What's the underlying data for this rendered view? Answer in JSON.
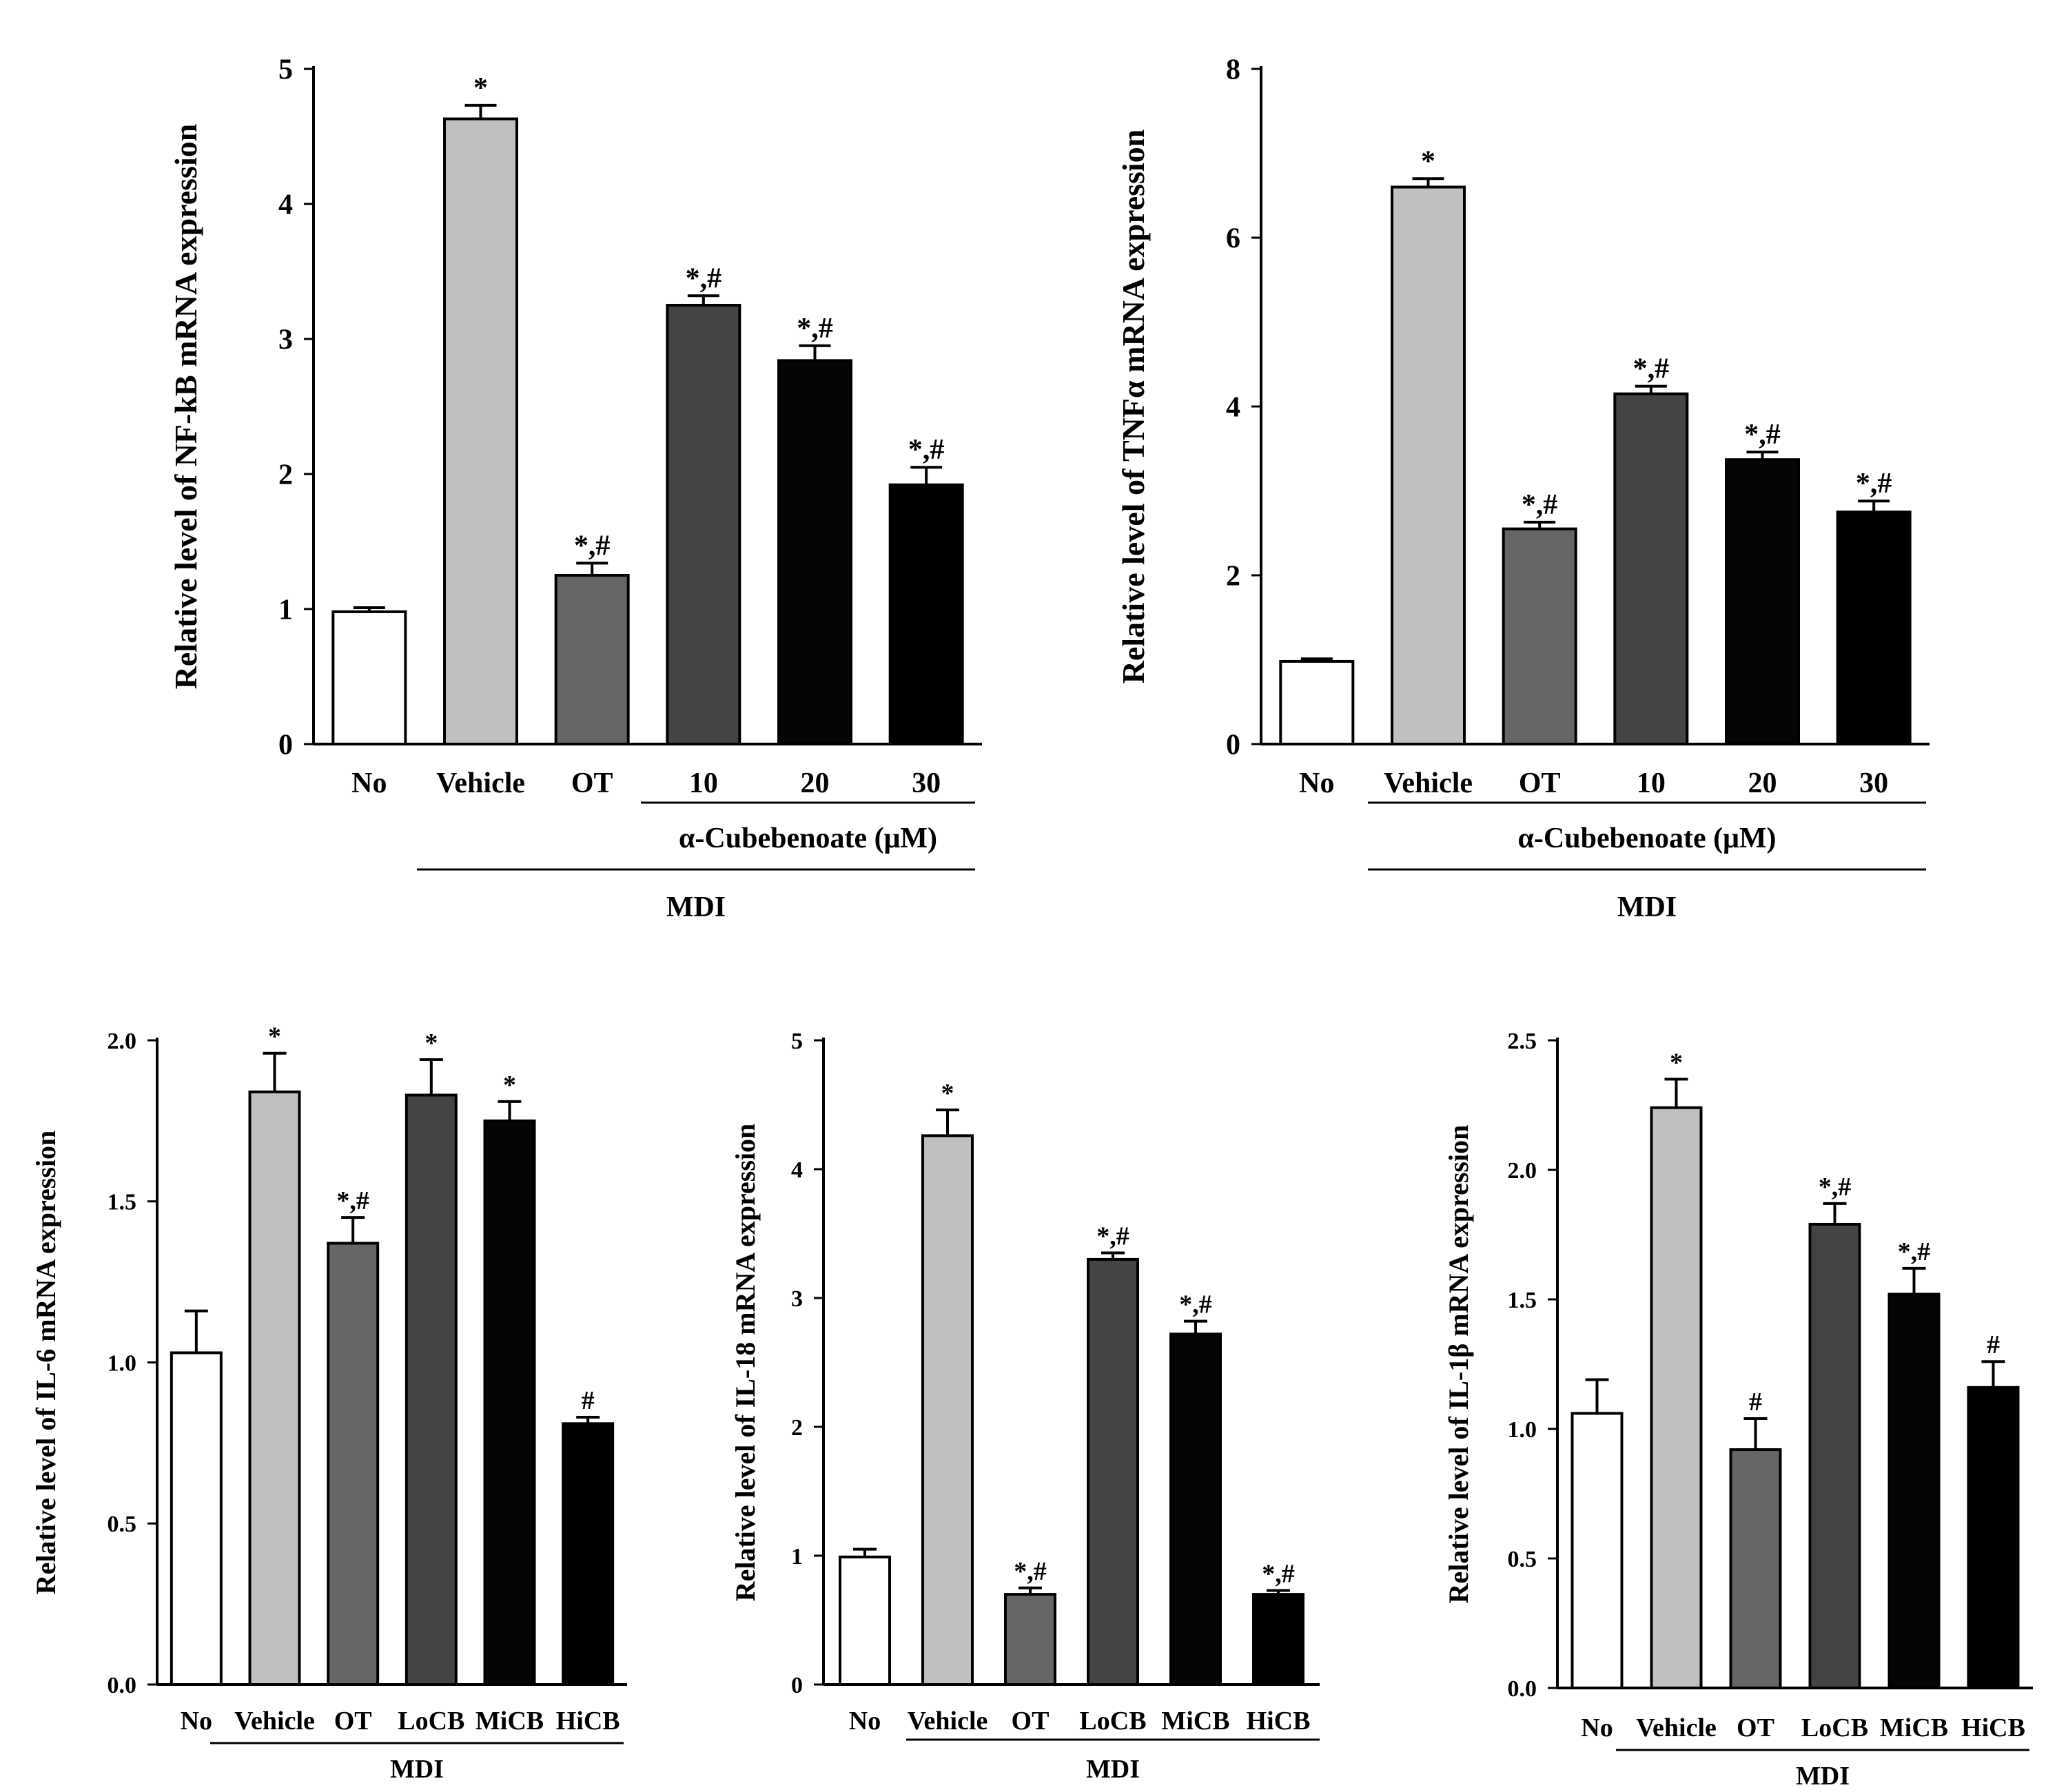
{
  "colors": {
    "No": "#ffffff",
    "Vehicle": "#c0c0c0",
    "OT": "#666666",
    "low": "#444444",
    "mid": "#050505",
    "high": "#000000",
    "stroke": "#000000"
  },
  "chart_data": [
    {
      "id": "nfkb",
      "type": "bar",
      "ylabel": "Relative level of NF-kB mRNA expression",
      "ylim": [
        0,
        5
      ],
      "yticks": [
        "0",
        "1",
        "2",
        "3",
        "4",
        "5"
      ],
      "categories": [
        "No",
        "Vehicle",
        "OT",
        "10",
        "20",
        "30"
      ],
      "values": [
        0.98,
        4.63,
        1.25,
        3.25,
        2.84,
        1.92
      ],
      "errors": [
        0.03,
        0.1,
        0.09,
        0.07,
        0.11,
        0.13
      ],
      "annotations": [
        "",
        "*",
        "*,#",
        "*,#",
        "*,#",
        "*,#"
      ],
      "subgroup_label": "α-Cubebenoate (μM)",
      "group_label": "MDI"
    },
    {
      "id": "tnfa",
      "type": "bar",
      "ylabel": "Relative level of  TNFα mRNA expression",
      "ylim": [
        0,
        8
      ],
      "yticks": [
        "0",
        "2",
        "4",
        "6",
        "8"
      ],
      "categories": [
        "No",
        "Vehicle",
        "OT",
        "10",
        "20",
        "30"
      ],
      "values": [
        0.98,
        6.6,
        2.55,
        4.15,
        3.37,
        2.75
      ],
      "errors": [
        0.03,
        0.1,
        0.08,
        0.09,
        0.09,
        0.13
      ],
      "annotations": [
        "",
        "*",
        "*,#",
        "*,#",
        "*,#",
        "*,#"
      ],
      "subgroup_label": "α-Cubebenoate (μM)",
      "group_label": "MDI"
    },
    {
      "id": "il6",
      "type": "bar",
      "ylabel": "Relative level of IL-6 mRNA expression",
      "ylim": [
        0,
        2
      ],
      "yticks": [
        "0.0",
        "0.5",
        "1.0",
        "1.5",
        "2.0"
      ],
      "categories": [
        "No",
        "Vehicle",
        "OT",
        "LoCB",
        "MiCB",
        "HiCB"
      ],
      "values": [
        1.03,
        1.84,
        1.37,
        1.83,
        1.75,
        0.81
      ],
      "errors": [
        0.13,
        0.12,
        0.08,
        0.11,
        0.06,
        0.02
      ],
      "annotations": [
        "",
        "*",
        "*,#",
        "*",
        "*",
        "#"
      ],
      "group_label": "MDI"
    },
    {
      "id": "il18",
      "type": "bar",
      "ylabel": "Relative level of IL-18  mRNA expression",
      "ylim": [
        0,
        5
      ],
      "yticks": [
        "0",
        "1",
        "2",
        "3",
        "4",
        "5"
      ],
      "categories": [
        "No",
        "Vehicle",
        "OT",
        "LoCB",
        "MiCB",
        "HiCB"
      ],
      "values": [
        0.99,
        4.26,
        0.7,
        3.3,
        2.72,
        0.7
      ],
      "errors": [
        0.06,
        0.2,
        0.05,
        0.05,
        0.1,
        0.03
      ],
      "annotations": [
        "",
        "*",
        "*,#",
        "*,#",
        "*,#",
        "*,#"
      ],
      "group_label": "MDI"
    },
    {
      "id": "il1b",
      "type": "bar",
      "ylabel": "Relative level of  IL-1β mRNA expression",
      "ylim": [
        0,
        2.5
      ],
      "yticks": [
        "0.0",
        "0.5",
        "1.0",
        "1.5",
        "2.0",
        "2.5"
      ],
      "categories": [
        "No",
        "Vehicle",
        "OT",
        "LoCB",
        "MiCB",
        "HiCB"
      ],
      "values": [
        1.06,
        2.24,
        0.92,
        1.79,
        1.52,
        1.16
      ],
      "errors": [
        0.13,
        0.11,
        0.12,
        0.08,
        0.1,
        0.1
      ],
      "annotations": [
        "",
        "*",
        "#",
        "*,#",
        "*,#",
        "#"
      ],
      "group_label": "MDI"
    }
  ]
}
